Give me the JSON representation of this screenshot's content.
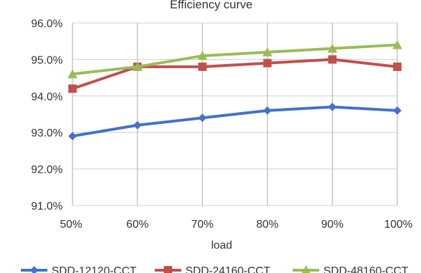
{
  "chart_data": {
    "type": "line",
    "title": "Efficiency curve",
    "xlabel": "load",
    "ylabel": "",
    "categories": [
      "50%",
      "60%",
      "70%",
      "80%",
      "90%",
      "100%"
    ],
    "ylim": [
      91.0,
      96.0
    ],
    "yticks": [
      91.0,
      92.0,
      93.0,
      94.0,
      95.0,
      96.0
    ],
    "ytick_labels": [
      "91.0%",
      "92.0%",
      "93.0%",
      "94.0%",
      "95.0%",
      "96.0%"
    ],
    "grid": true,
    "legend_position": "bottom",
    "series": [
      {
        "name": "SDD-12120-CCT",
        "color": "#4472C4",
        "marker": "diamond",
        "values": [
          92.9,
          93.2,
          93.4,
          93.6,
          93.7,
          93.6
        ]
      },
      {
        "name": "SDD-24160-CCT",
        "color": "#C0504D",
        "marker": "square",
        "values": [
          94.2,
          94.8,
          94.8,
          94.9,
          95.0,
          94.8
        ]
      },
      {
        "name": "SDD-48160-CCT",
        "color": "#9BBB59",
        "marker": "triangle",
        "values": [
          94.6,
          94.8,
          95.1,
          95.2,
          95.3,
          95.4
        ]
      }
    ]
  }
}
